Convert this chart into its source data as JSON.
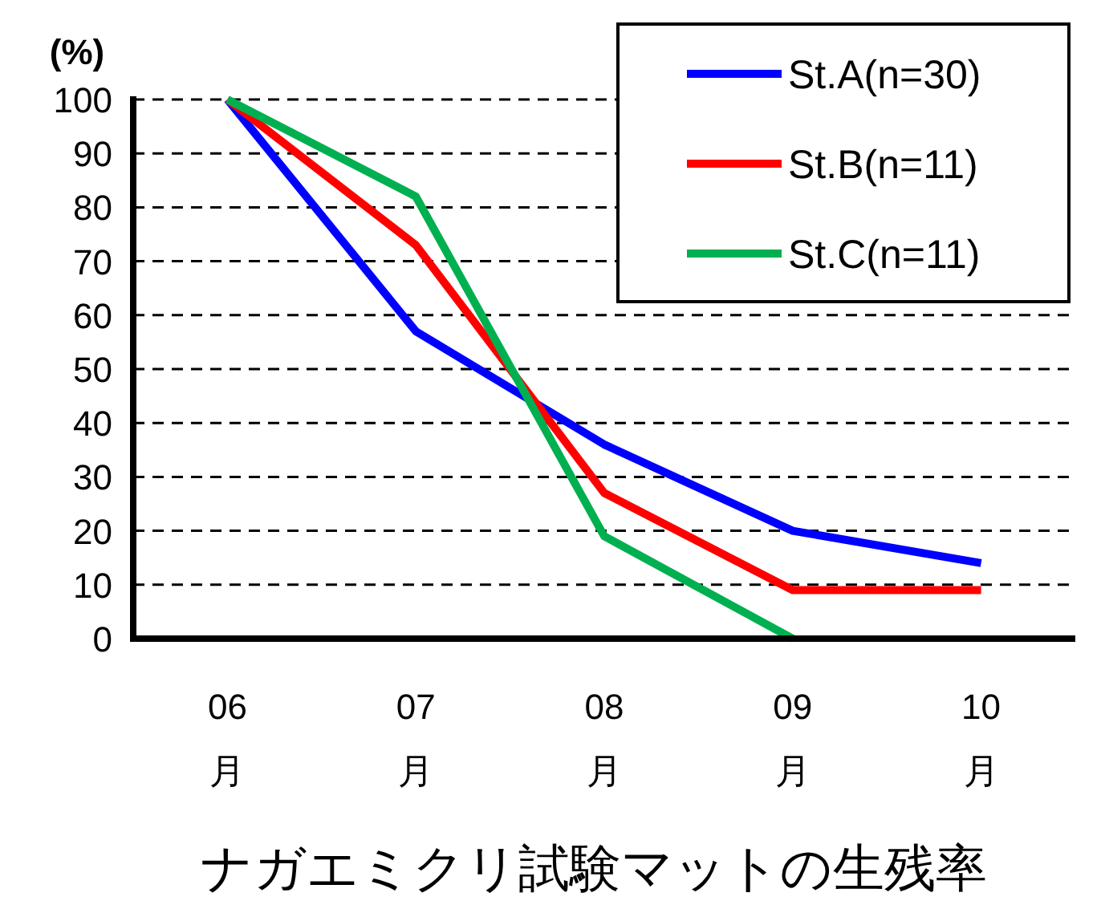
{
  "chart_data": {
    "type": "line",
    "title": "ナガエミクリ試験マットの生残率",
    "ylabel": "(%)",
    "categories": [
      "06\n月",
      "07\n月",
      "08\n月",
      "09\n月",
      "10\n月"
    ],
    "series": [
      {
        "name": "St.A(n=30)",
        "color": "#0000ff",
        "values": [
          100,
          57,
          36,
          20,
          14
        ]
      },
      {
        "name": "St.B(n=11)",
        "color": "#ff0000",
        "values": [
          100,
          73,
          27,
          9,
          9
        ]
      },
      {
        "name": "St.C(n=11)",
        "color": "#00b050",
        "values": [
          100,
          82,
          19,
          0,
          null
        ]
      }
    ],
    "ylim": [
      0,
      100
    ],
    "yticks": [
      0,
      10,
      20,
      30,
      40,
      50,
      60,
      70,
      80,
      90,
      100
    ],
    "grid": "y",
    "legend": "top right"
  }
}
